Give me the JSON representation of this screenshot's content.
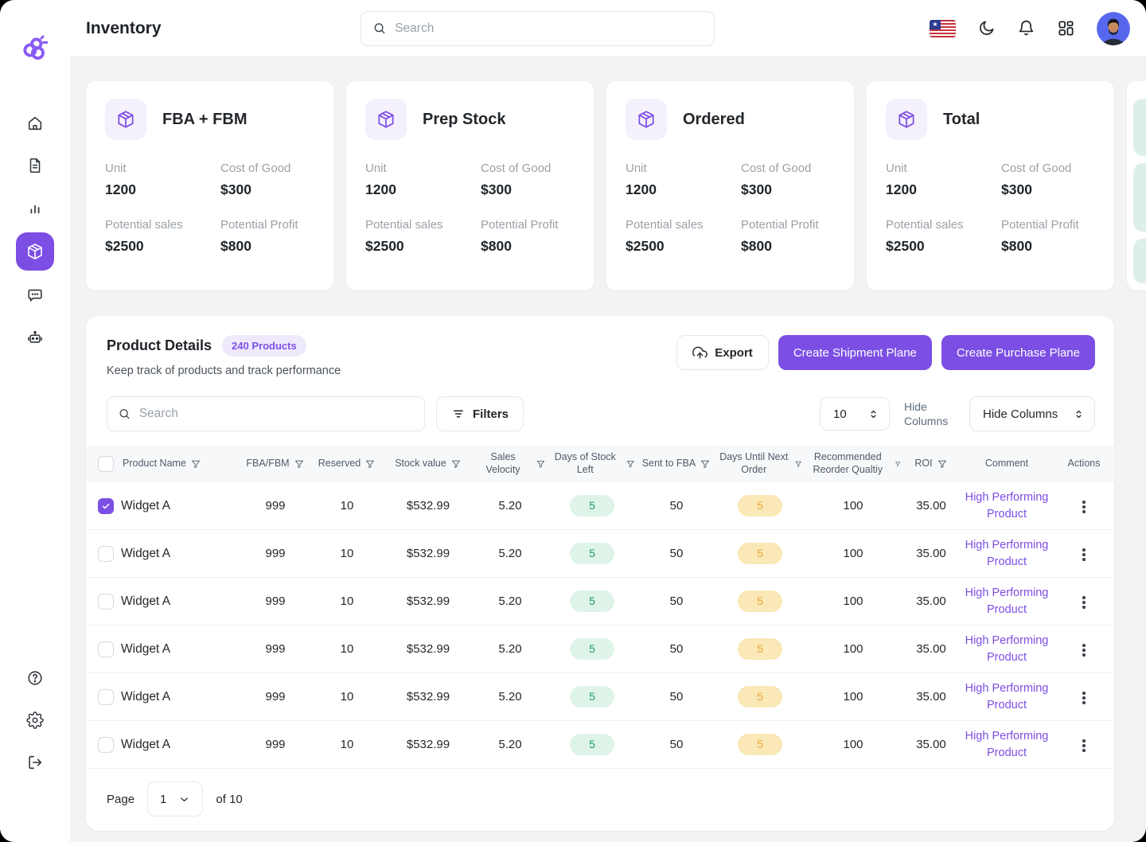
{
  "header": {
    "title": "Inventory",
    "search_placeholder": "Search",
    "icons": [
      "flag-us",
      "moon",
      "bell",
      "apps-grid",
      "avatar"
    ]
  },
  "sidebar": {
    "items": [
      {
        "name": "home"
      },
      {
        "name": "documents"
      },
      {
        "name": "analytics"
      },
      {
        "name": "inventory",
        "active": true
      },
      {
        "name": "messages"
      },
      {
        "name": "bot"
      }
    ],
    "footer_items": [
      {
        "name": "help"
      },
      {
        "name": "settings"
      },
      {
        "name": "logout"
      }
    ]
  },
  "stat_cards": {
    "labels": {
      "unit": "Unit",
      "cost": "Cost of Good",
      "sales": "Potential sales",
      "profit": "Potential Profit"
    },
    "cards": [
      {
        "title": "FBA + FBM",
        "unit": "1200",
        "cost": "$300",
        "sales": "$2500",
        "profit": "$800"
      },
      {
        "title": "Prep Stock",
        "unit": "1200",
        "cost": "$300",
        "sales": "$2500",
        "profit": "$800"
      },
      {
        "title": "Ordered",
        "unit": "1200",
        "cost": "$300",
        "sales": "$2500",
        "profit": "$800"
      },
      {
        "title": "Total",
        "unit": "1200",
        "cost": "$300",
        "sales": "$2500",
        "profit": "$800"
      }
    ]
  },
  "products": {
    "title": "Product Details",
    "badge": "240 Products",
    "subtitle": "Keep track of products and track performance",
    "actions": {
      "export": "Export",
      "create_shipment": "Create Shipment Plane",
      "create_purchase": "Create Purchase Plane"
    },
    "toolbar": {
      "search_placeholder": "Search",
      "filters": "Filters",
      "page_size": "10",
      "hide_columns_label": "Hide Columns",
      "hide_columns_value": "Hide Columns"
    },
    "columns": [
      {
        "label": "Product Name",
        "filter": true
      },
      {
        "label": "FBA/FBM",
        "filter": true
      },
      {
        "label": "Reserved",
        "filter": true
      },
      {
        "label": "Stock value",
        "filter": true
      },
      {
        "label": "Sales Velocity",
        "filter": true
      },
      {
        "label": "Days of Stock Left",
        "filter": true
      },
      {
        "label": "Sent to FBA",
        "filter": true
      },
      {
        "label": "Days Until Next Order",
        "filter": true
      },
      {
        "label": "Recommended Reorder Qualtiy",
        "filter": true
      },
      {
        "label": "ROI",
        "filter": true
      },
      {
        "label": "Comment",
        "filter": false
      },
      {
        "label": "Actions",
        "filter": false
      }
    ],
    "rows": [
      {
        "checked": true,
        "product": "Widget A",
        "fba_fbm": "999",
        "reserved": "10",
        "stock_value": "$532.99",
        "sales_velocity": "5.20",
        "days_of_stock_left": "5",
        "sent_to_fba": "50",
        "days_until_next_order": "5",
        "recommended_reorder_qty": "100",
        "roi": "35.00",
        "comment": "High Performing Product"
      },
      {
        "checked": false,
        "product": "Widget A",
        "fba_fbm": "999",
        "reserved": "10",
        "stock_value": "$532.99",
        "sales_velocity": "5.20",
        "days_of_stock_left": "5",
        "sent_to_fba": "50",
        "days_until_next_order": "5",
        "recommended_reorder_qty": "100",
        "roi": "35.00",
        "comment": "High Performing Product"
      },
      {
        "checked": false,
        "product": "Widget A",
        "fba_fbm": "999",
        "reserved": "10",
        "stock_value": "$532.99",
        "sales_velocity": "5.20",
        "days_of_stock_left": "5",
        "sent_to_fba": "50",
        "days_until_next_order": "5",
        "recommended_reorder_qty": "100",
        "roi": "35.00",
        "comment": "High Performing Product"
      },
      {
        "checked": false,
        "product": "Widget A",
        "fba_fbm": "999",
        "reserved": "10",
        "stock_value": "$532.99",
        "sales_velocity": "5.20",
        "days_of_stock_left": "5",
        "sent_to_fba": "50",
        "days_until_next_order": "5",
        "recommended_reorder_qty": "100",
        "roi": "35.00",
        "comment": "High Performing Product"
      },
      {
        "checked": false,
        "product": "Widget A",
        "fba_fbm": "999",
        "reserved": "10",
        "stock_value": "$532.99",
        "sales_velocity": "5.20",
        "days_of_stock_left": "5",
        "sent_to_fba": "50",
        "days_until_next_order": "5",
        "recommended_reorder_qty": "100",
        "roi": "35.00",
        "comment": "High Performing Product"
      },
      {
        "checked": false,
        "product": "Widget A",
        "fba_fbm": "999",
        "reserved": "10",
        "stock_value": "$532.99",
        "sales_velocity": "5.20",
        "days_of_stock_left": "5",
        "sent_to_fba": "50",
        "days_until_next_order": "5",
        "recommended_reorder_qty": "100",
        "roi": "35.00",
        "comment": "High Performing Product"
      }
    ],
    "pagination": {
      "page_label": "Page",
      "current_page": "1",
      "total_label": "of 10"
    }
  },
  "colors": {
    "primary": "#7C4EE4",
    "primary_light": "#F4F0FC",
    "green_pill_bg": "#DFF4E9",
    "green_pill_text": "#1F9D62",
    "yellow_pill_bg": "#FAE8B6",
    "yellow_pill_text": "#E8A73C",
    "avatar_bg": "#5667EE"
  }
}
